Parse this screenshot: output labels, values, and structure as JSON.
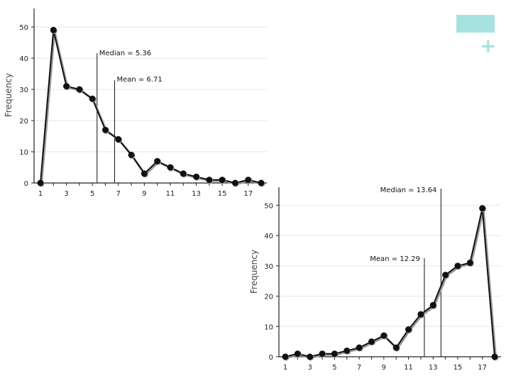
{
  "decor": {
    "accent_color": "#a8e2e0",
    "plus_glyph": "+"
  },
  "chart_data": [
    {
      "type": "line",
      "skew": "right",
      "ylabel": "Frequency",
      "xlabel": "",
      "x": [
        1,
        2,
        3,
        4,
        5,
        6,
        7,
        8,
        9,
        10,
        11,
        12,
        13,
        14,
        15,
        16,
        17,
        18
      ],
      "values": [
        0,
        49,
        31,
        30,
        27,
        17,
        14,
        9,
        3,
        7,
        5,
        3,
        2,
        1,
        1,
        0,
        1,
        0
      ],
      "xticks": [
        "1",
        "3",
        "5",
        "7",
        "9",
        "11",
        "13",
        "15",
        "17"
      ],
      "xlim": [
        1,
        18
      ],
      "yticks": [
        "0",
        "10",
        "20",
        "30",
        "40",
        "50"
      ],
      "ylim": [
        0,
        55
      ],
      "grid": true,
      "markers": [
        {
          "x": 5.36,
          "label": "Median = 5.36"
        },
        {
          "x": 6.71,
          "label": "Mean = 6.71"
        }
      ]
    },
    {
      "type": "line",
      "skew": "left",
      "ylabel": "Frequency",
      "xlabel": "",
      "x": [
        1,
        2,
        3,
        4,
        5,
        6,
        7,
        8,
        9,
        10,
        11,
        12,
        13,
        14,
        15,
        16,
        17,
        18
      ],
      "values": [
        0,
        1,
        0,
        1,
        1,
        2,
        3,
        5,
        7,
        3,
        9,
        14,
        17,
        27,
        30,
        31,
        49,
        0
      ],
      "xticks": [
        "1",
        "3",
        "5",
        "7",
        "9",
        "11",
        "13",
        "15",
        "17"
      ],
      "xlim": [
        1,
        18
      ],
      "yticks": [
        "0",
        "10",
        "20",
        "30",
        "40",
        "50"
      ],
      "ylim": [
        0,
        55
      ],
      "grid": true,
      "markers": [
        {
          "x": 13.64,
          "label": "Median = 13.64"
        },
        {
          "x": 12.29,
          "label": "Mean = 12.29"
        }
      ]
    }
  ]
}
